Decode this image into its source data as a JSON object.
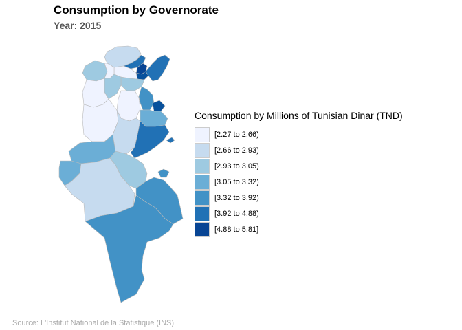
{
  "header": {
    "title": "Consumption by Governorate",
    "subtitle": "Year: 2015"
  },
  "legend": {
    "title": "Consumption by Millions of Tunisian Dinar (TND)",
    "items": [
      {
        "label": "[2.27 to 2.66)",
        "color": "#eff3ff"
      },
      {
        "label": "[2.66 to 2.93)",
        "color": "#c6dbef"
      },
      {
        "label": "[2.93 to 3.05)",
        "color": "#9ecae1"
      },
      {
        "label": "[3.05 to 3.32)",
        "color": "#6baed6"
      },
      {
        "label": "[3.32 to 3.92)",
        "color": "#4292c6"
      },
      {
        "label": "[3.92 to 4.88)",
        "color": "#2171b5"
      },
      {
        "label": "[4.88 to 5.81]",
        "color": "#084594"
      }
    ]
  },
  "caption": "Source: L'Institut National de la Statistique (INS)"
}
